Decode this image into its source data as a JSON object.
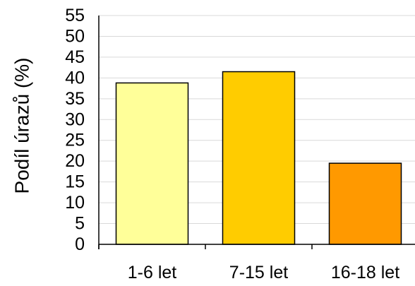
{
  "chart_data": {
    "type": "bar",
    "title": "",
    "xlabel": "",
    "ylabel": "Podíl úrazů (%)",
    "categories": [
      "1-6 let",
      "7-15 let",
      "16-18 let"
    ],
    "values": [
      38.8,
      41.5,
      19.5
    ],
    "bar_colors": [
      "#FFFF99",
      "#FFCC00",
      "#FF9900"
    ],
    "bar_border_color": "#000000",
    "gridline_color": "#D9D9D9",
    "ylim": [
      0,
      55
    ],
    "y_ticks": [
      "0",
      "5",
      "10",
      "15",
      "20",
      "25",
      "30",
      "35",
      "40",
      "45",
      "50",
      "55"
    ],
    "grid": true,
    "legend": "none"
  }
}
